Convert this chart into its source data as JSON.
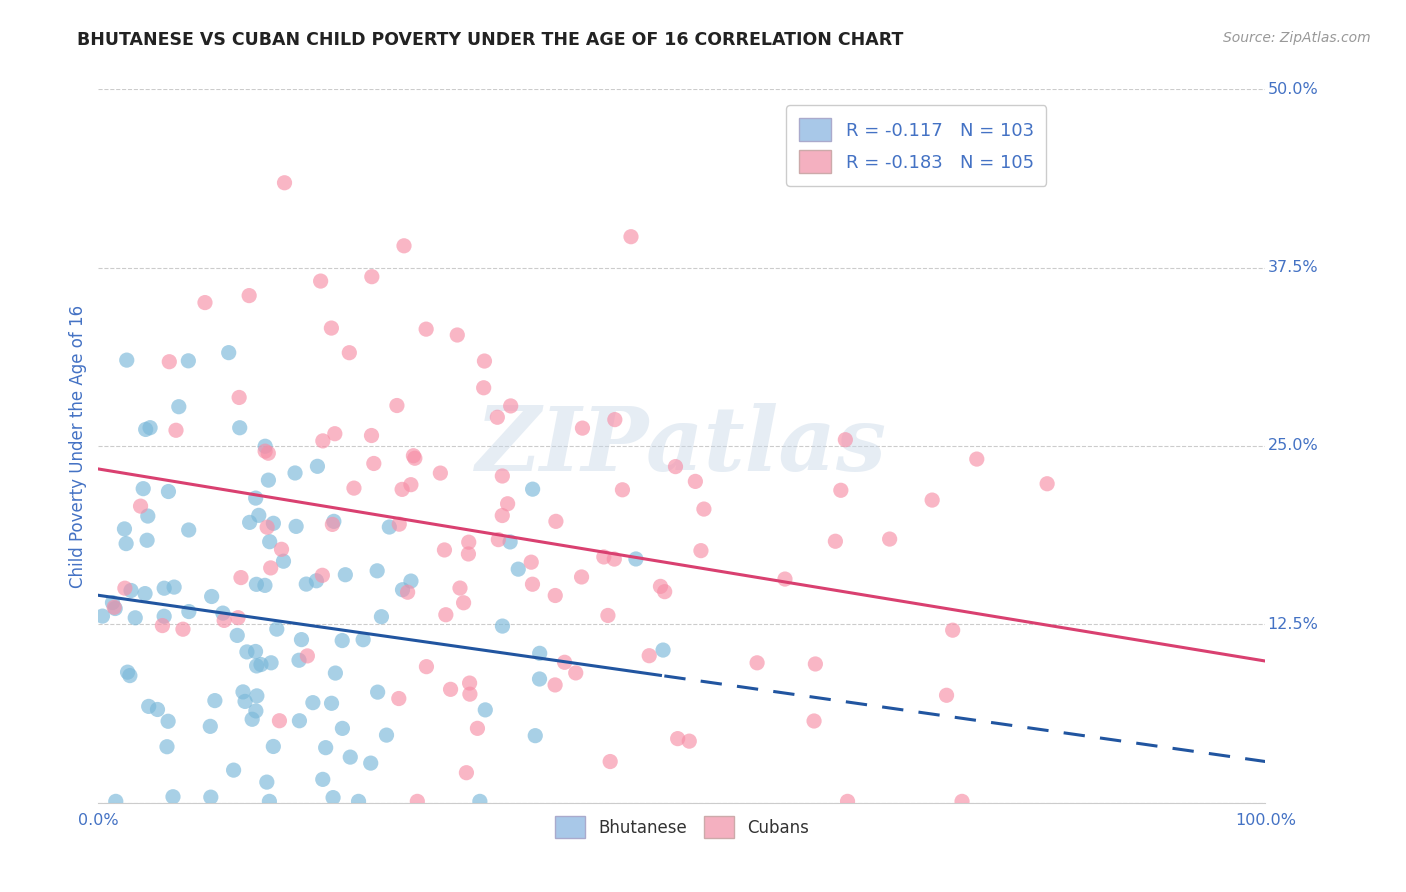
{
  "title": "BHUTANESE VS CUBAN CHILD POVERTY UNDER THE AGE OF 16 CORRELATION CHART",
  "source": "Source: ZipAtlas.com",
  "ylabel": "Child Poverty Under the Age of 16",
  "xlim": [
    0.0,
    1.0
  ],
  "ylim": [
    0.0,
    0.5
  ],
  "yticks": [
    0.0,
    0.125,
    0.25,
    0.375,
    0.5
  ],
  "ytick_labels_right": [
    "50.0%",
    "37.5%",
    "25.0%",
    "12.5%",
    ""
  ],
  "xtick_labels": [
    "0.0%",
    "",
    "",
    "",
    "100.0%"
  ],
  "bhutanese_color": "#7ab8d9",
  "cuban_color": "#f78fa7",
  "bhutanese_line_color": "#2155a0",
  "cuban_line_color": "#d94070",
  "bhutanese_R": -0.117,
  "cuban_R": -0.183,
  "bhutanese_N": 103,
  "cuban_N": 105,
  "watermark": "ZIPatlas",
  "background_color": "#ffffff",
  "grid_color": "#cccccc",
  "title_color": "#222222",
  "tick_color": "#4472c4",
  "legend_patch_blue": "#a8c8e8",
  "legend_patch_pink": "#f4b0c0",
  "seed_bhutanese": 12,
  "seed_cuban": 77
}
